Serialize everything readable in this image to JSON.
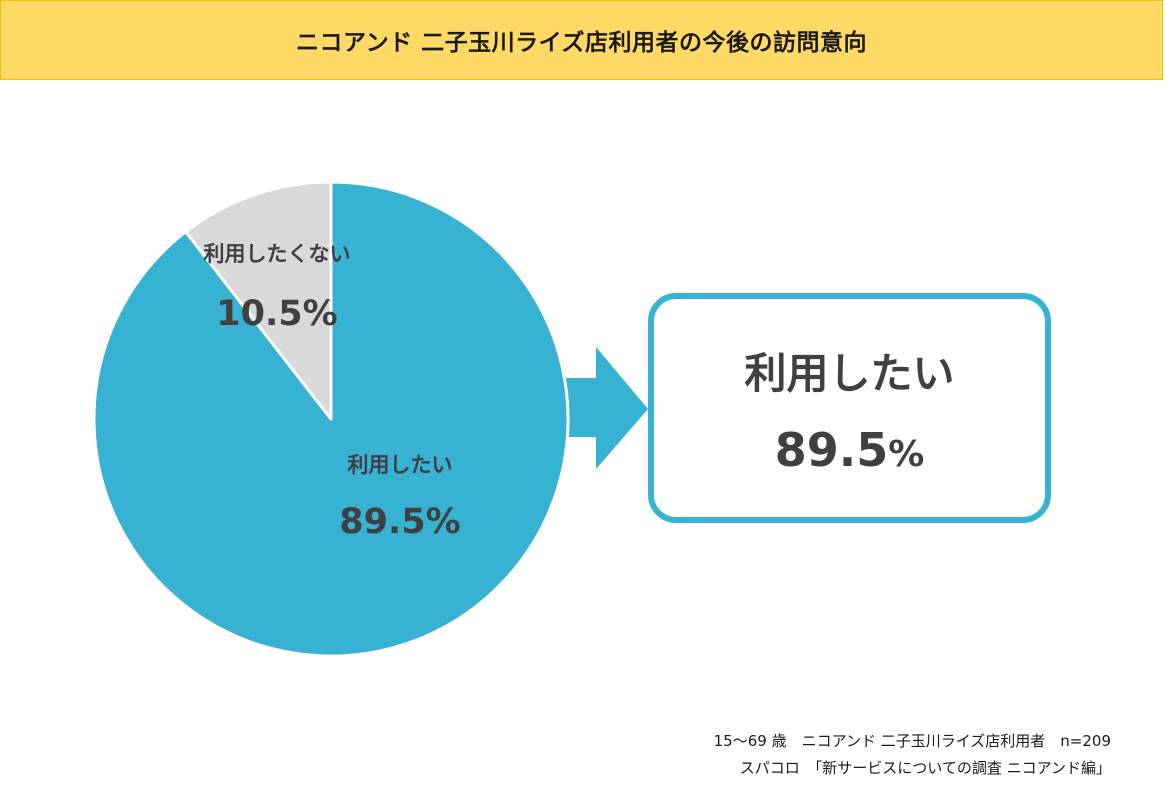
{
  "header": {
    "title": "ニコアンド 二子玉川ライズ店利用者の今後の訪問意向"
  },
  "chart_data": {
    "type": "pie",
    "slices": [
      {
        "label": "利用したい",
        "value": 89.5,
        "value_label": "89.5%",
        "color": "#37B2D3"
      },
      {
        "label": "利用したくない",
        "value": 10.5,
        "value_label": "10.5%",
        "color": "#D9D9D9"
      }
    ]
  },
  "callout": {
    "label": "利用したい",
    "value": "89.5",
    "unit": "%"
  },
  "footer": {
    "line1": "15～69 歳　ニコアンド 二子玉川ライズ店利用者　n=209",
    "line2": "スパコロ　「新サービスについての調査 ニコアンド編」"
  },
  "colors": {
    "accent": "#37B2D3",
    "header_bg": "#FFD966",
    "text": "#404040"
  }
}
